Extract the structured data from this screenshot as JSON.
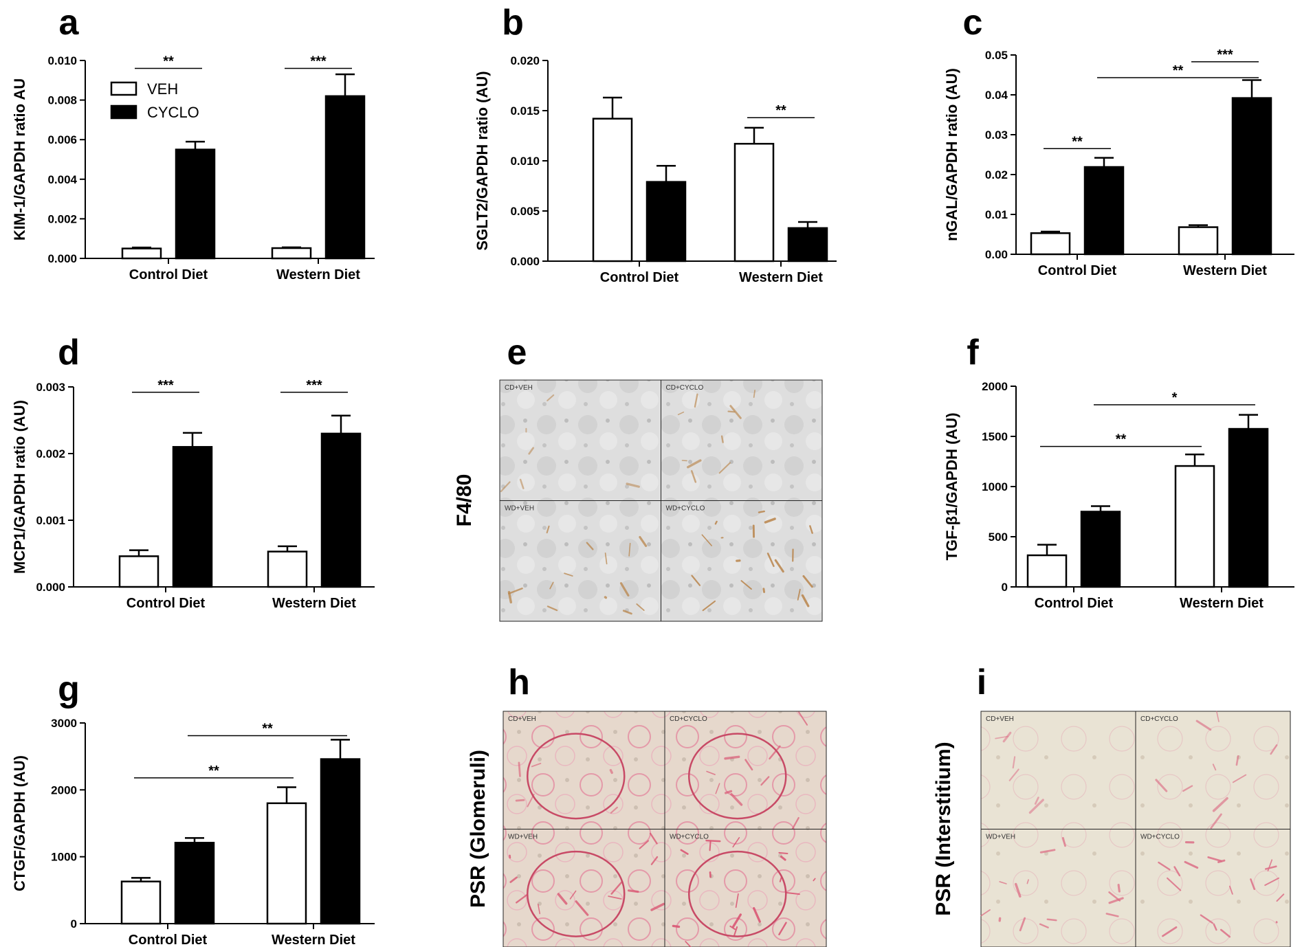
{
  "chart_data": [
    {
      "panel": "a",
      "type": "bar",
      "title": "",
      "xlabel": "",
      "ylabel": "KIM-1/GAPDH ratio AU",
      "ylim": [
        0,
        0.01
      ],
      "yticks": [
        "0.000",
        "0.002",
        "0.004",
        "0.006",
        "0.008",
        "0.010"
      ],
      "categories": [
        "Control Diet",
        "Western Diet"
      ],
      "series": [
        {
          "name": "VEH",
          "color": "#ffffff",
          "values": [
            0.0005,
            0.00052
          ],
          "errors": [
            5e-05,
            4e-05
          ]
        },
        {
          "name": "CYCLO",
          "color": "#000000",
          "values": [
            0.0055,
            0.0082
          ],
          "errors": [
            0.0004,
            0.0011
          ]
        }
      ],
      "legend": {
        "position": "top-left",
        "entries": [
          "VEH",
          "CYCLO"
        ]
      },
      "significance": [
        {
          "label": "**",
          "from": [
            0,
            0
          ],
          "to": [
            0,
            1
          ],
          "y": 0.0096
        },
        {
          "label": "***",
          "from": [
            1,
            0
          ],
          "to": [
            1,
            1
          ],
          "y": 0.0096
        }
      ]
    },
    {
      "panel": "b",
      "type": "bar",
      "title": "",
      "xlabel": "",
      "ylabel": "SGLT2/GAPDH ratio (AU)",
      "ylim": [
        0,
        0.02
      ],
      "yticks": [
        "0.000",
        "0.005",
        "0.010",
        "0.015",
        "0.020"
      ],
      "categories": [
        "Control Diet",
        "Western Diet"
      ],
      "series": [
        {
          "name": "VEH",
          "color": "#ffffff",
          "values": [
            0.0142,
            0.0117
          ],
          "errors": [
            0.0021,
            0.0016
          ]
        },
        {
          "name": "CYCLO",
          "color": "#000000",
          "values": [
            0.0079,
            0.0033
          ],
          "errors": [
            0.0016,
            0.0006
          ]
        }
      ],
      "significance": [
        {
          "label": "**",
          "from": [
            1,
            0
          ],
          "to": [
            1,
            1
          ],
          "y": 0.0143
        }
      ]
    },
    {
      "panel": "c",
      "type": "bar",
      "title": "",
      "xlabel": "",
      "ylabel": "nGAL/GAPDH ratio (AU)",
      "ylim": [
        0,
        0.05
      ],
      "yticks": [
        "0.00",
        "0.01",
        "0.02",
        "0.03",
        "0.04",
        "0.05"
      ],
      "categories": [
        "Control Diet",
        "Western Diet"
      ],
      "series": [
        {
          "name": "VEH",
          "color": "#ffffff",
          "values": [
            0.0053,
            0.0068
          ],
          "errors": [
            0.0004,
            0.0005
          ]
        },
        {
          "name": "CYCLO",
          "color": "#000000",
          "values": [
            0.0219,
            0.0392
          ],
          "errors": [
            0.0023,
            0.0045
          ]
        }
      ],
      "significance": [
        {
          "label": "**",
          "from": [
            0,
            0
          ],
          "to": [
            0,
            1
          ],
          "y": 0.0265
        },
        {
          "label": "**",
          "from": [
            0,
            1
          ],
          "to": [
            1,
            1
          ],
          "y": 0.0443
        },
        {
          "label": "***",
          "from": [
            1,
            0
          ],
          "to": [
            1,
            1
          ],
          "y": 0.0483
        }
      ]
    },
    {
      "panel": "d",
      "type": "bar",
      "title": "",
      "xlabel": "",
      "ylabel": "MCP1/GAPDH ratio (AU)",
      "ylim": [
        0,
        0.003
      ],
      "yticks": [
        "0.000",
        "0.001",
        "0.002",
        "0.003"
      ],
      "categories": [
        "Control Diet",
        "Western Diet"
      ],
      "series": [
        {
          "name": "VEH",
          "color": "#ffffff",
          "values": [
            0.00046,
            0.00053
          ],
          "errors": [
            9e-05,
            8e-05
          ]
        },
        {
          "name": "CYCLO",
          "color": "#000000",
          "values": [
            0.0021,
            0.0023
          ],
          "errors": [
            0.00021,
            0.00027
          ]
        }
      ],
      "significance": [
        {
          "label": "***",
          "from": [
            0,
            0
          ],
          "to": [
            0,
            1
          ],
          "y": 0.00292
        },
        {
          "label": "***",
          "from": [
            1,
            0
          ],
          "to": [
            1,
            1
          ],
          "y": 0.00292
        }
      ]
    },
    {
      "panel": "f",
      "type": "bar",
      "title": "",
      "xlabel": "",
      "ylabel": "TGF-β1/GAPDH (AU)",
      "ylim": [
        0,
        2000
      ],
      "yticks": [
        "0",
        "500",
        "1000",
        "1500",
        "2000"
      ],
      "categories": [
        "Control Diet",
        "Western Diet"
      ],
      "series": [
        {
          "name": "VEH",
          "color": "#ffffff",
          "values": [
            315,
            1205
          ],
          "errors": [
            105,
            115
          ]
        },
        {
          "name": "CYCLO",
          "color": "#000000",
          "values": [
            750,
            1575
          ],
          "errors": [
            55,
            140
          ]
        }
      ],
      "significance": [
        {
          "label": "**",
          "from": [
            0,
            0
          ],
          "to": [
            1,
            0
          ],
          "y": 1400
        },
        {
          "label": "*",
          "from": [
            0,
            1
          ],
          "to": [
            1,
            1
          ],
          "y": 1815
        }
      ]
    },
    {
      "panel": "g",
      "type": "bar",
      "title": "",
      "xlabel": "",
      "ylabel": "CTGF/GAPDH (AU)",
      "ylim": [
        0,
        3000
      ],
      "yticks": [
        "0",
        "1000",
        "2000",
        "3000"
      ],
      "categories": [
        "Control Diet",
        "Western Diet"
      ],
      "series": [
        {
          "name": "VEH",
          "color": "#ffffff",
          "values": [
            630,
            1800
          ],
          "errors": [
            55,
            240
          ]
        },
        {
          "name": "CYCLO",
          "color": "#000000",
          "values": [
            1210,
            2460
          ],
          "errors": [
            70,
            290
          ]
        }
      ],
      "significance": [
        {
          "label": "**",
          "from": [
            0,
            0
          ],
          "to": [
            1,
            0
          ],
          "y": 2180
        },
        {
          "label": "**",
          "from": [
            0,
            1
          ],
          "to": [
            1,
            1
          ],
          "y": 2810
        }
      ]
    }
  ],
  "panel_letters": {
    "a": "a",
    "b": "b",
    "c": "c",
    "d": "d",
    "e": "e",
    "f": "f",
    "g": "g",
    "h": "h",
    "i": "i"
  },
  "micrographs": [
    {
      "panel": "e",
      "stain_label": "F4/80",
      "stain": "f480",
      "quadrants": [
        "CD+VEH",
        "CD+CYCLO",
        "WD+VEH",
        "WD+CYCLO"
      ]
    },
    {
      "panel": "h",
      "stain_label": "PSR (Glomeruli)",
      "stain": "psr-glom",
      "quadrants": [
        "CD+VEH",
        "CD+CYCLO",
        "WD+VEH",
        "WD+CYCLO"
      ]
    },
    {
      "panel": "i",
      "stain_label": "PSR (Interstitium)",
      "stain": "psr-inter",
      "quadrants": [
        "CD+VEH",
        "CD+CYCLO",
        "WD+VEH",
        "WD+CYCLO"
      ]
    }
  ]
}
